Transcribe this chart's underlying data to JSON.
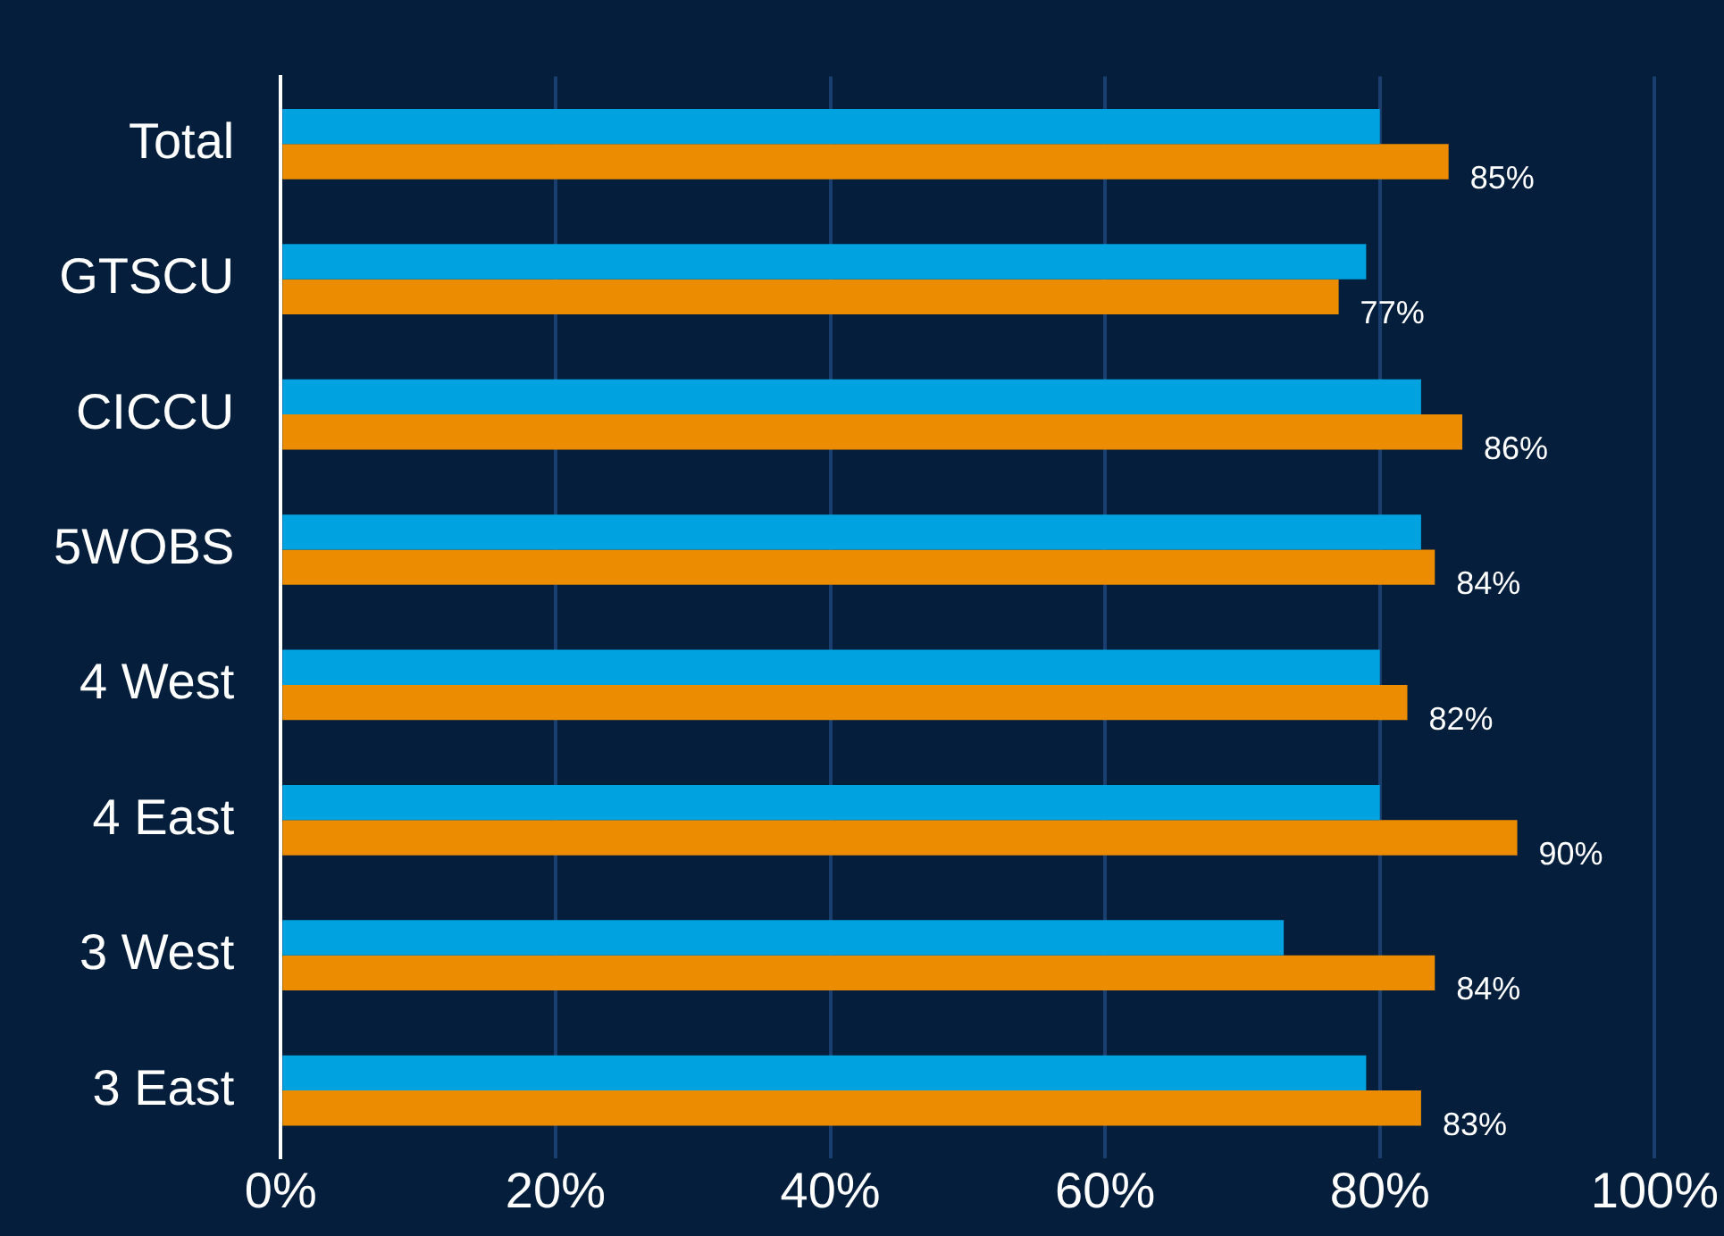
{
  "chart_data": {
    "type": "bar",
    "orientation": "horizontal",
    "categories": [
      "Total",
      "GTSCU",
      "CICCU",
      "5WOBS",
      "4 West",
      "4 East",
      "3 West",
      "3 East"
    ],
    "series": [
      {
        "color": "#00a2df",
        "values": [
          80,
          79,
          83,
          83,
          80,
          80,
          73,
          79
        ]
      },
      {
        "color": "#ec8c00",
        "values": [
          85,
          77,
          86,
          84,
          82,
          90,
          84,
          83
        ],
        "value_labels": [
          "85%",
          "77%",
          "86%",
          "84%",
          "82%",
          "90%",
          "84%",
          "83%"
        ]
      }
    ],
    "xlim": [
      0,
      100
    ],
    "xticks": [
      {
        "value": 0,
        "label": "0%"
      },
      {
        "value": 20,
        "label": "20%"
      },
      {
        "value": 40,
        "label": "40%"
      },
      {
        "value": 60,
        "label": "60%"
      },
      {
        "value": 80,
        "label": "80%"
      },
      {
        "value": 100,
        "label": "100%"
      }
    ],
    "grid": "x",
    "legend": false
  }
}
